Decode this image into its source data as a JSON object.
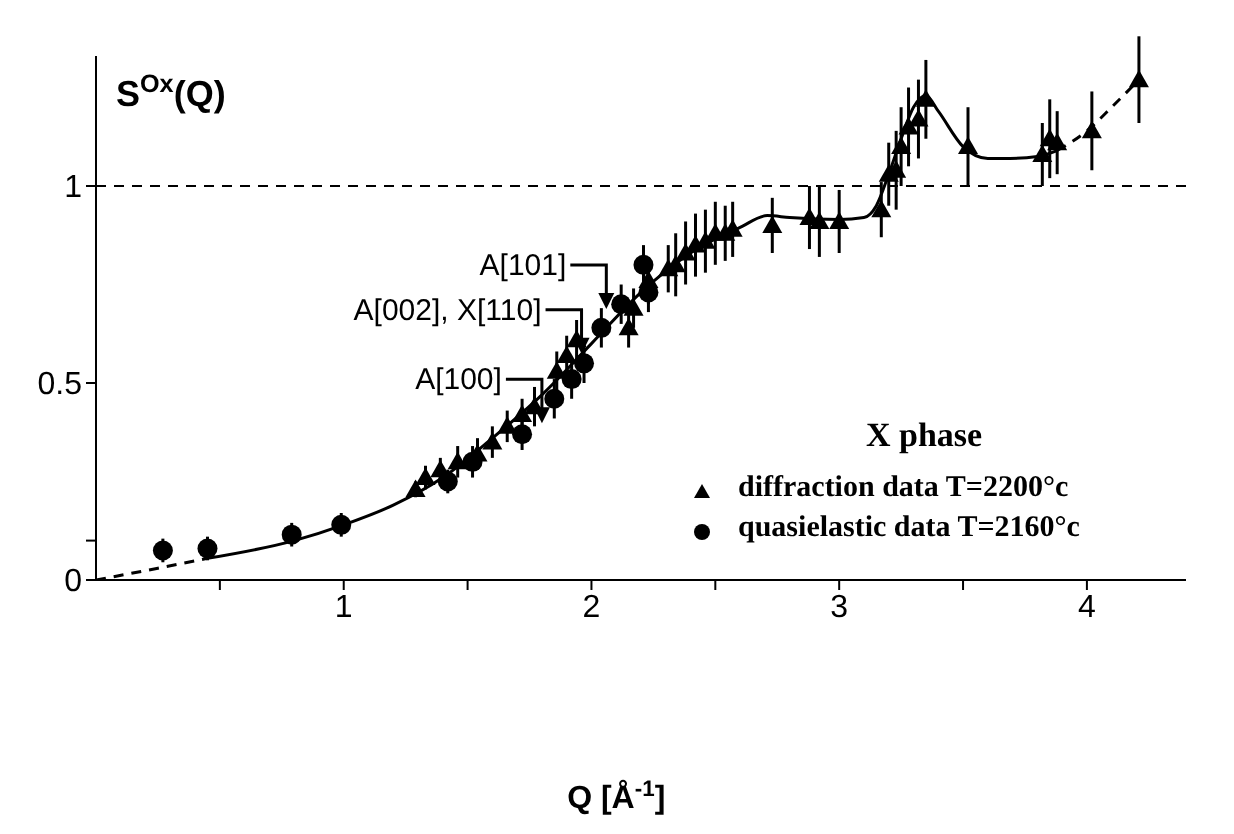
{
  "chart_data": {
    "type": "scatter",
    "ylabel": "S$^{Ox}$(Q)",
    "xlabel": "Q [Å$^{-1}$]",
    "legend_title": "X phase",
    "legend": "bottom right",
    "xlim": [
      0,
      4.4
    ],
    "ylim": [
      0,
      1.33
    ],
    "xticks": [
      {
        "value": 0.5,
        "label": null
      },
      1,
      {
        "value": 1.5,
        "label": null
      },
      2,
      {
        "value": 2.5,
        "label": null
      },
      3,
      {
        "value": 3.5,
        "label": null
      },
      4
    ],
    "yticks": [
      0,
      {
        "value": 0.1,
        "label": null
      },
      0.5,
      1
    ],
    "ref_lines": [
      {
        "axis": "y",
        "value": 1,
        "label": null,
        "color": "#000000",
        "line_style": "dashed"
      }
    ],
    "annotations": [
      "A[101]",
      "A[002], X[110]",
      "A[100]"
    ],
    "series": [
      {
        "name": "diffraction data T=2200°c",
        "marker": "triangle",
        "color": "#000000",
        "x": [
          1.29,
          1.33,
          1.39,
          1.46,
          1.54,
          1.6,
          1.66,
          1.72,
          1.77,
          1.86,
          1.9,
          1.94,
          2.15,
          2.17,
          2.23,
          2.31,
          2.34,
          2.38,
          2.42,
          2.46,
          2.5,
          2.54,
          2.57,
          2.73,
          2.88,
          2.92,
          3.0,
          3.17,
          3.2,
          3.23,
          3.25,
          3.28,
          3.32,
          3.35,
          3.52,
          3.82,
          3.85,
          3.88,
          4.02,
          4.21
        ],
        "values": [
          0.23,
          0.26,
          0.28,
          0.3,
          0.32,
          0.35,
          0.39,
          0.42,
          0.44,
          0.53,
          0.57,
          0.61,
          0.64,
          0.69,
          0.76,
          0.79,
          0.8,
          0.83,
          0.85,
          0.86,
          0.88,
          0.88,
          0.89,
          0.9,
          0.92,
          0.91,
          0.91,
          0.94,
          1.03,
          1.04,
          1.1,
          1.15,
          1.17,
          1.22,
          1.1,
          1.08,
          1.12,
          1.11,
          1.14,
          1.27
        ],
        "errors": [
          0.02,
          0.03,
          0.03,
          0.04,
          0.04,
          0.04,
          0.04,
          0.04,
          0.05,
          0.05,
          0.05,
          0.05,
          0.05,
          0.05,
          0.06,
          0.06,
          0.08,
          0.08,
          0.08,
          0.08,
          0.08,
          0.07,
          0.07,
          0.07,
          0.08,
          0.09,
          0.08,
          0.07,
          0.08,
          0.1,
          0.1,
          0.1,
          0.1,
          0.1,
          0.1,
          0.08,
          0.1,
          0.08,
          0.1,
          0.11
        ]
      },
      {
        "name": "quasielastic data T=2160°c",
        "marker": "circle",
        "color": "#000000",
        "x": [
          0.27,
          0.45,
          0.79,
          0.99,
          1.42,
          1.52,
          1.72,
          1.85,
          1.92,
          1.97,
          2.04,
          2.12,
          2.21,
          2.23
        ],
        "values": [
          0.075,
          0.08,
          0.115,
          0.14,
          0.25,
          0.3,
          0.37,
          0.46,
          0.51,
          0.55,
          0.64,
          0.7,
          0.8,
          0.73
        ],
        "errors": [
          0.03,
          0.03,
          0.03,
          0.03,
          0.03,
          0.04,
          0.04,
          0.05,
          0.05,
          0.05,
          0.05,
          0.05,
          0.05,
          0.05
        ]
      },
      {
        "type": "line",
        "marker": "none",
        "line_style": "dashed",
        "color": "#000000",
        "x": [
          0,
          0.25,
          0.45
        ],
        "values": [
          0,
          0.03,
          0.055
        ]
      },
      {
        "type": "line",
        "marker": "none",
        "line_style": "solid",
        "color": "#000000",
        "x": [
          0.45,
          0.8,
          1.0,
          1.2,
          1.4,
          1.6,
          1.8,
          2.0,
          2.2,
          2.4,
          2.6,
          2.71,
          2.8,
          3.0,
          3.1,
          3.15,
          3.2,
          3.25,
          3.3,
          3.35,
          3.4,
          3.5,
          3.6,
          3.69,
          3.8,
          3.88
        ],
        "values": [
          0.055,
          0.1,
          0.14,
          0.19,
          0.26,
          0.36,
          0.47,
          0.6,
          0.73,
          0.83,
          0.895,
          0.925,
          0.92,
          0.915,
          0.92,
          0.95,
          1.03,
          1.12,
          1.2,
          1.23,
          1.19,
          1.1,
          1.07,
          1.07,
          1.075,
          1.09
        ]
      },
      {
        "type": "line",
        "marker": "none",
        "line_style": "dashed",
        "color": "#000000",
        "x": [
          3.88,
          4.0,
          4.1,
          4.21
        ],
        "values": [
          1.09,
          1.14,
          1.2,
          1.27
        ]
      }
    ]
  }
}
